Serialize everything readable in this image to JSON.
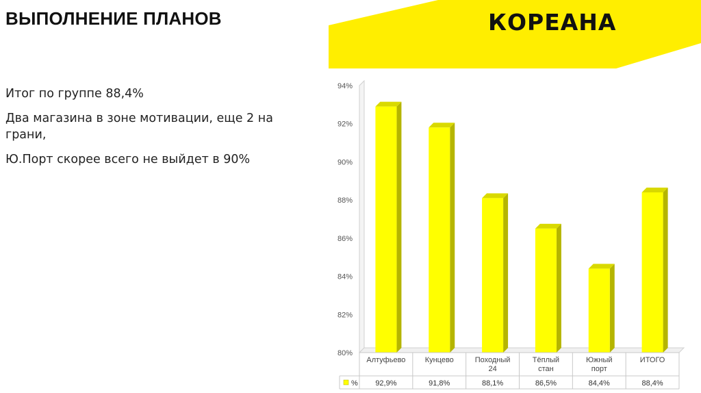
{
  "slide": {
    "title": "ВЫПОЛНЕНИЕ ПЛАНОВ",
    "logo": "КОРЕАНА",
    "bullets": [
      "Итог по группе 88,4%",
      "Два магазина в зоне мотивации, еще 2 на грани,",
      "Ю.Порт скорее всего не выйдет в 90%"
    ]
  },
  "colors": {
    "accent": "#ffee00",
    "bar_front": "#ffff00",
    "bar_side": "#b5b500",
    "bar_top": "#d9d900"
  },
  "chart_data": {
    "type": "bar",
    "categories": [
      [
        "Алтуфьево"
      ],
      [
        "Кунцево"
      ],
      [
        "Походный",
        "24"
      ],
      [
        "Тёплый",
        "стан"
      ],
      [
        "Южный",
        "порт"
      ],
      [
        "ИТОГО"
      ]
    ],
    "series": [
      {
        "name": "%",
        "values": [
          92.9,
          91.8,
          88.1,
          86.5,
          84.4,
          88.4
        ]
      }
    ],
    "data_labels": [
      "92,9%",
      "91,8%",
      "88,1%",
      "86,5%",
      "84,4%",
      "88,4%"
    ],
    "ylim": [
      80,
      94
    ],
    "yticks": [
      "80%",
      "82%",
      "84%",
      "86%",
      "88%",
      "90%",
      "92%",
      "94%"
    ],
    "ytick_values": [
      80,
      82,
      84,
      86,
      88,
      90,
      92,
      94
    ],
    "legend_placement": "data-table",
    "grid": false
  }
}
